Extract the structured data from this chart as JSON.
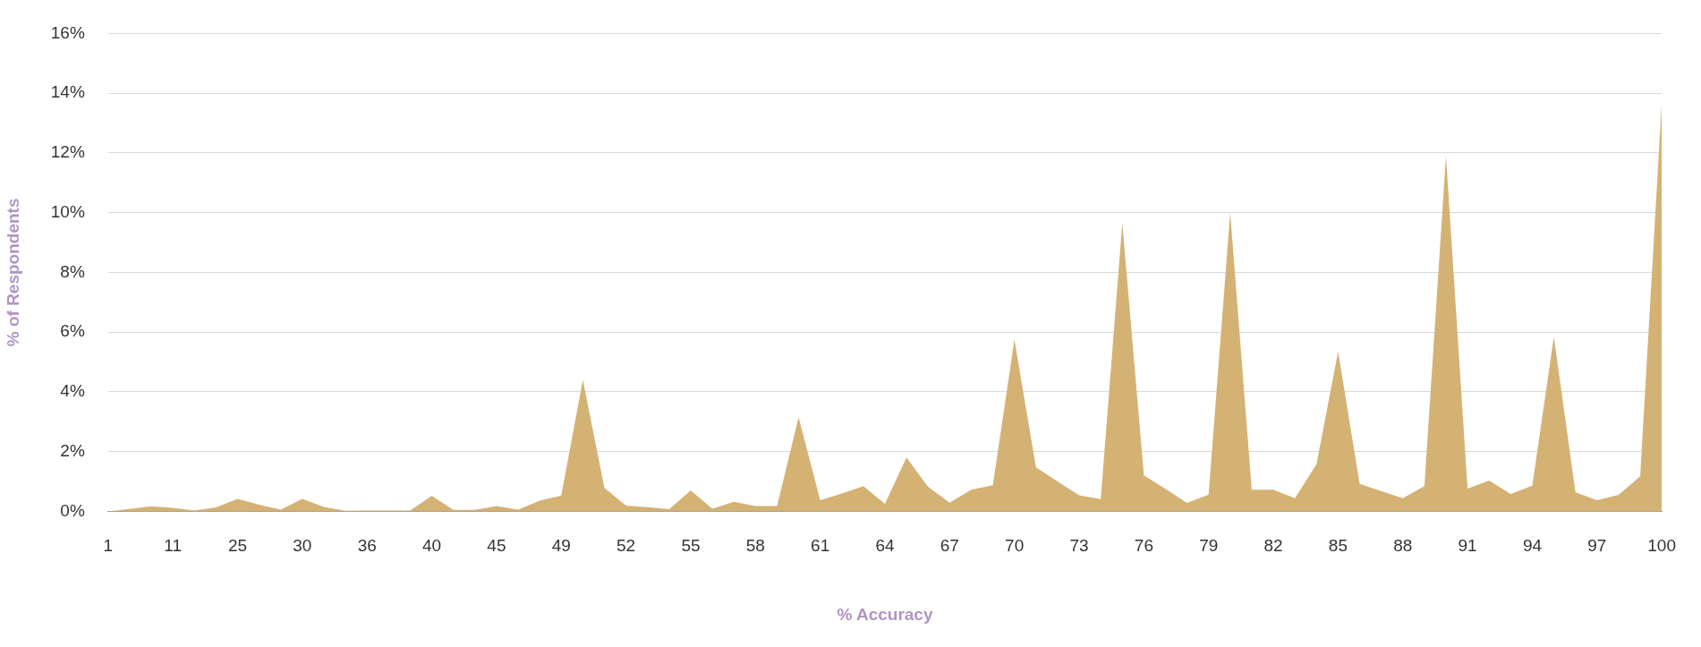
{
  "chart_data": {
    "type": "area",
    "xlabel": "% Accuracy",
    "ylabel": "% of Respondents",
    "categories": [
      "1",
      null,
      null,
      "11",
      null,
      null,
      "25",
      null,
      null,
      "30",
      null,
      null,
      "36",
      null,
      null,
      "40",
      null,
      null,
      "45",
      null,
      null,
      "49",
      null,
      null,
      "52",
      null,
      null,
      "55",
      null,
      null,
      "58",
      null,
      null,
      "61",
      null,
      null,
      "64",
      null,
      null,
      "67",
      null,
      null,
      "70",
      null,
      null,
      "73",
      null,
      null,
      "76",
      null,
      null,
      "79",
      null,
      null,
      "82",
      null,
      null,
      "85",
      null,
      null,
      "88",
      null,
      null,
      "91",
      null,
      null,
      "94",
      null,
      null,
      "97",
      null,
      null,
      "100"
    ],
    "values": [
      0,
      0.08,
      0.17,
      0.12,
      0.03,
      0.13,
      0.42,
      0.22,
      0.06,
      0.42,
      0.15,
      0.02,
      0.03,
      0.03,
      0.03,
      0.52,
      0.05,
      0.05,
      0.18,
      0.06,
      0.36,
      0.53,
      4.4,
      0.78,
      0.19,
      0.14,
      0.07,
      0.7,
      0.09,
      0.32,
      0.18,
      0.18,
      3.15,
      0.37,
      0.6,
      0.84,
      0.25,
      1.8,
      0.82,
      0.29,
      0.72,
      0.87,
      5.75,
      1.47,
      1.0,
      0.54,
      0.41,
      9.65,
      1.2,
      0.75,
      0.28,
      0.56,
      10.0,
      0.72,
      0.72,
      0.44,
      1.58,
      5.35,
      0.92,
      0.68,
      0.44,
      0.84,
      11.9,
      0.76,
      1.03,
      0.58,
      0.86,
      5.85,
      0.64,
      0.37,
      0.55,
      1.17,
      13.7
    ],
    "color": "#d4b274",
    "ylim": [
      0,
      16
    ],
    "yticks": [
      {
        "value": 0,
        "label": "0%"
      },
      {
        "value": 2,
        "label": "2%"
      },
      {
        "value": 4,
        "label": "4%"
      },
      {
        "value": 6,
        "label": "6%"
      },
      {
        "value": 8,
        "label": "8%"
      },
      {
        "value": 10,
        "label": "10%"
      },
      {
        "value": 12,
        "label": "12%"
      },
      {
        "value": 14,
        "label": "14%"
      },
      {
        "value": 16,
        "label": "16%"
      }
    ],
    "grid": "y"
  }
}
